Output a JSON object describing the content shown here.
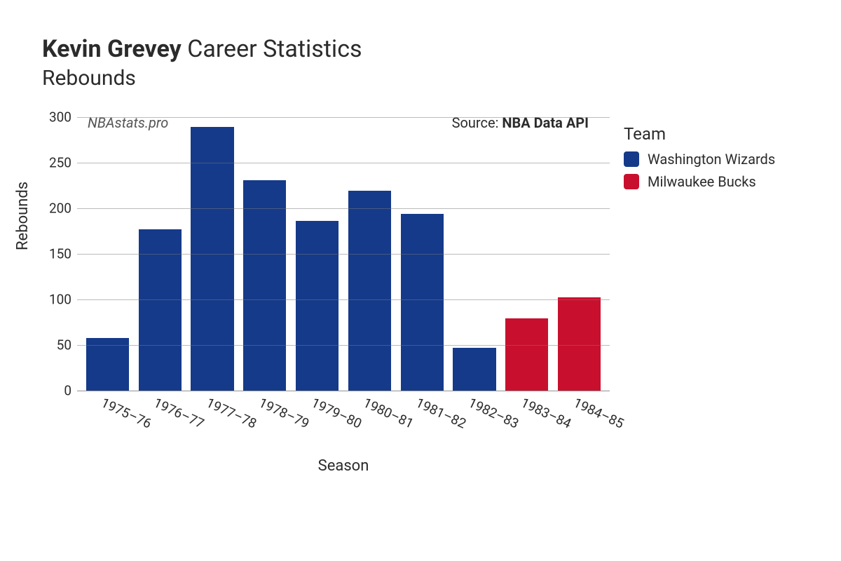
{
  "title": {
    "player": "Kevin Grevey",
    "suffix": "Career Statistics",
    "subtitle": "Rebounds"
  },
  "watermark": "NBAstats.pro",
  "source": {
    "prefix": "Source: ",
    "name": "NBA Data API"
  },
  "axes": {
    "xlabel": "Season",
    "ylabel": "Rebounds",
    "ylim": [
      0,
      300
    ],
    "yticks": [
      0,
      50,
      100,
      150,
      200,
      250,
      300
    ],
    "label_fontsize": 22,
    "tick_fontsize": 19
  },
  "colors": {
    "washington": "#153a8a",
    "milwaukee": "#c8102e",
    "background": "#ffffff",
    "grid": "#777777",
    "text": "#2b2b2b"
  },
  "chart": {
    "type": "bar",
    "bar_width": 0.82,
    "data": [
      {
        "season": "1975–76",
        "value": 58,
        "team": "washington"
      },
      {
        "season": "1976–77",
        "value": 177,
        "team": "washington"
      },
      {
        "season": "1977–78",
        "value": 289,
        "team": "washington"
      },
      {
        "season": "1978–79",
        "value": 231,
        "team": "washington"
      },
      {
        "season": "1979–80",
        "value": 186,
        "team": "washington"
      },
      {
        "season": "1980–81",
        "value": 219,
        "team": "washington"
      },
      {
        "season": "1981–82",
        "value": 194,
        "team": "washington"
      },
      {
        "season": "1982–83",
        "value": 47,
        "team": "washington"
      },
      {
        "season": "1983–84",
        "value": 79,
        "team": "milwaukee"
      },
      {
        "season": "1984–85",
        "value": 102,
        "team": "milwaukee"
      }
    ]
  },
  "legend": {
    "title": "Team",
    "items": [
      {
        "key": "washington",
        "label": "Washington Wizards"
      },
      {
        "key": "milwaukee",
        "label": "Milwaukee Bucks"
      }
    ]
  }
}
